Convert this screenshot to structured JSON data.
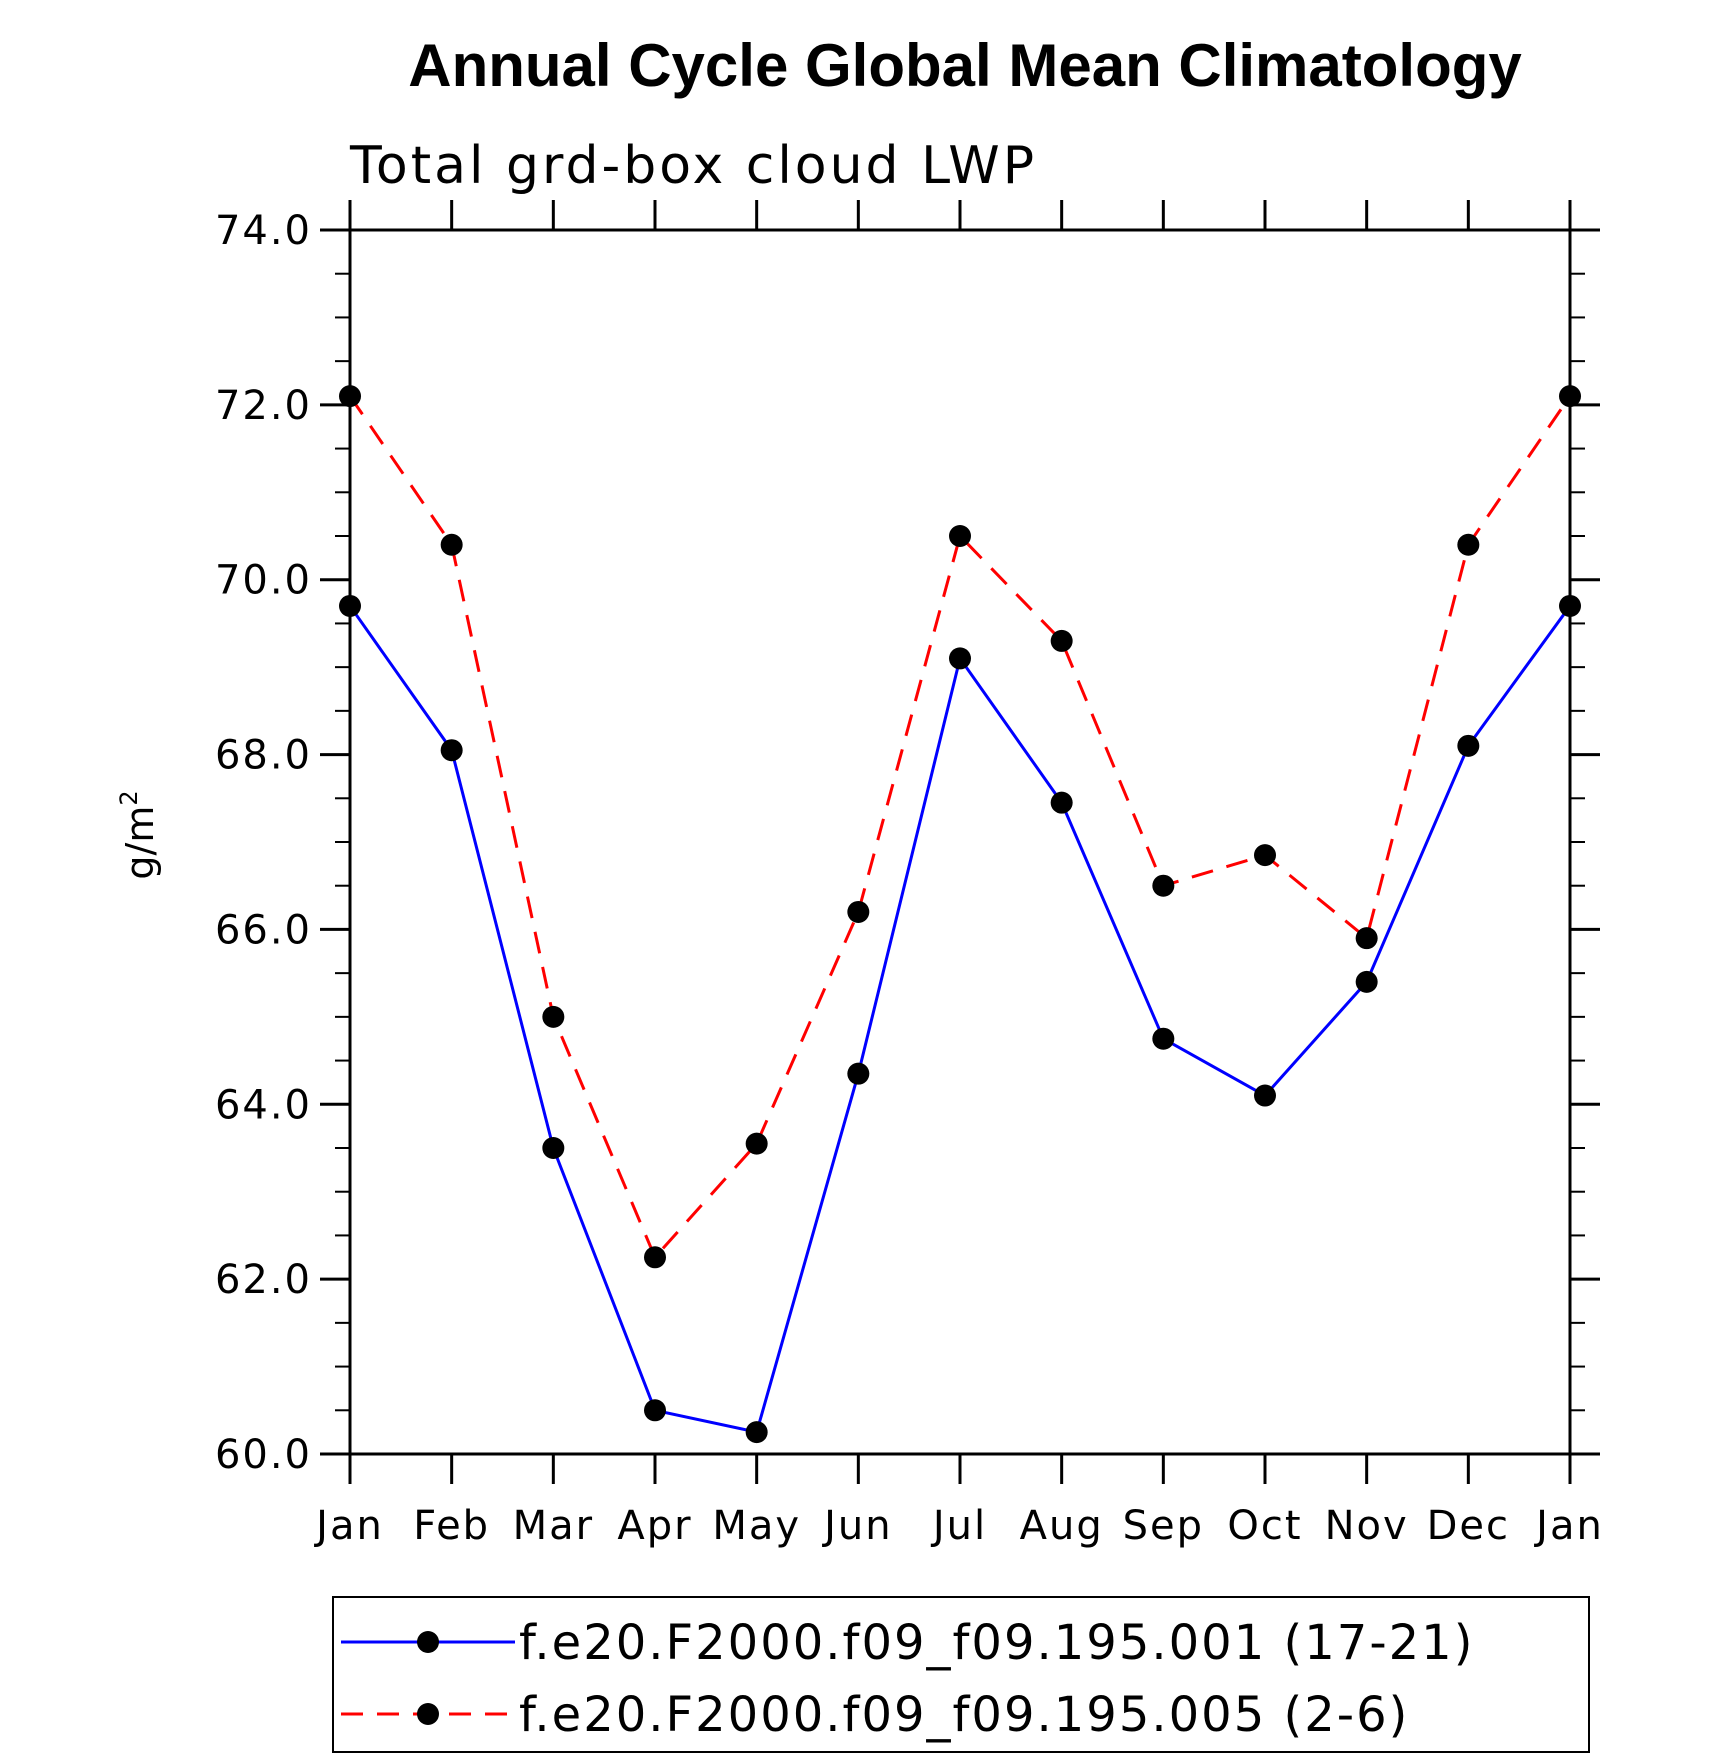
{
  "chart_data": {
    "type": "line",
    "title": "Annual Cycle Global Mean Climatology",
    "subtitle": "Total grd-box cloud LWP",
    "ylabel": "g/m",
    "ylabel_superscript": "2",
    "xlabel": "",
    "ylim": [
      60.0,
      74.0
    ],
    "yticks": [
      60.0,
      62.0,
      64.0,
      66.0,
      68.0,
      70.0,
      72.0,
      74.0
    ],
    "ytick_labels": [
      "60.0",
      "62.0",
      "64.0",
      "66.0",
      "68.0",
      "70.0",
      "72.0",
      "74.0"
    ],
    "categories": [
      "Jan",
      "Feb",
      "Mar",
      "Apr",
      "May",
      "Jun",
      "Jul",
      "Aug",
      "Sep",
      "Oct",
      "Nov",
      "Dec",
      "Jan"
    ],
    "grid": false,
    "legend_position": "bottom",
    "series": [
      {
        "name": "f.e20.F2000.f09_f09.195.001 (17-21)",
        "color": "#0000ff",
        "line_style": "solid",
        "marker": "filled-circle",
        "values": [
          69.7,
          68.05,
          63.5,
          60.5,
          60.25,
          64.35,
          69.1,
          67.45,
          64.75,
          64.1,
          65.4,
          68.1,
          69.7
        ]
      },
      {
        "name": "f.e20.F2000.f09_f09.195.005 (2-6)",
        "color": "#ff0000",
        "line_style": "dashed",
        "marker": "filled-circle",
        "values": [
          72.1,
          70.4,
          65.0,
          62.25,
          63.55,
          66.2,
          70.5,
          69.3,
          66.5,
          66.85,
          65.9,
          70.4,
          72.1
        ]
      }
    ]
  }
}
